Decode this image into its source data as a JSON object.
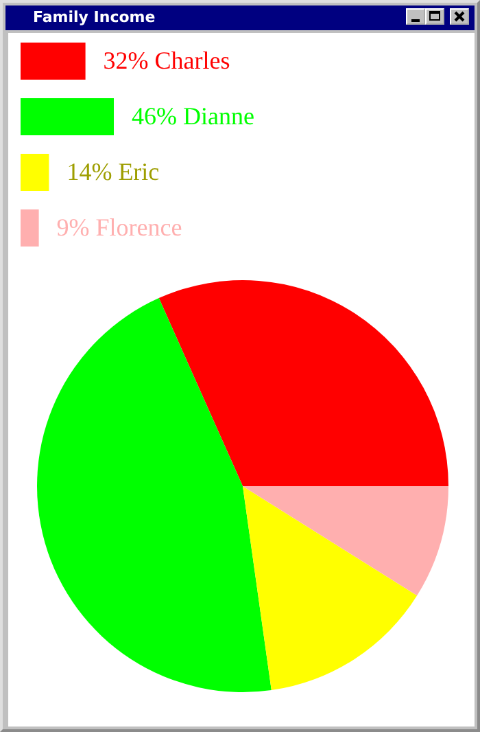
{
  "chart_data": {
    "type": "pie",
    "title": "Family Income",
    "categories": [
      "Charles",
      "Dianne",
      "Eric",
      "Florence"
    ],
    "values": [
      32,
      46,
      14,
      9
    ],
    "value_labels": [
      "32%",
      "46%",
      "14%",
      "9%"
    ],
    "colors": [
      "#ff0000",
      "#00ff00",
      "#ffff00",
      "#ffafaf"
    ],
    "legend": "top left"
  }
}
